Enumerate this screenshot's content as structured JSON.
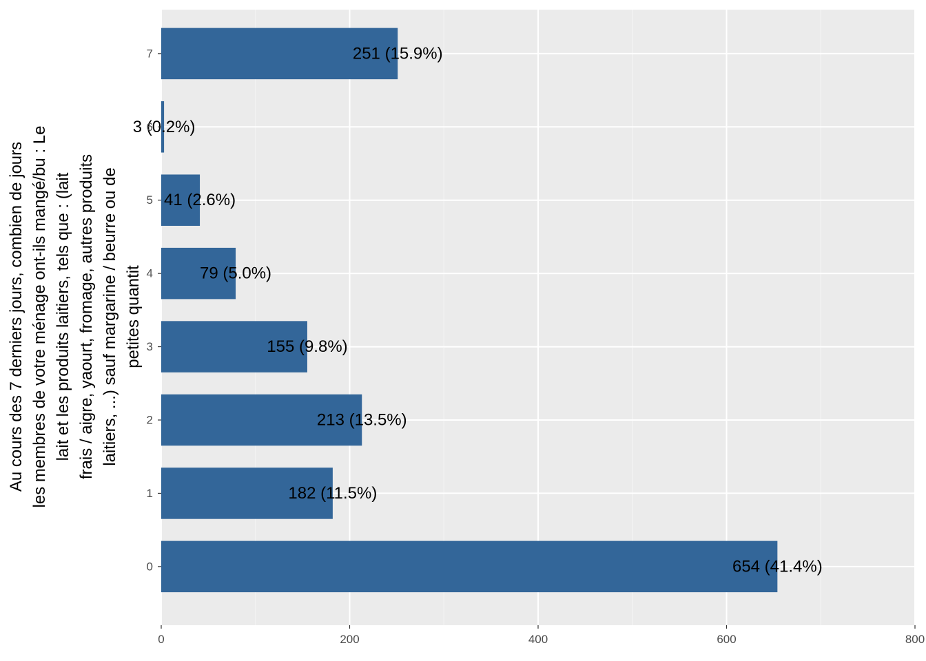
{
  "colors": {
    "panel": "#EBEBEB",
    "grid_major": "#FFFFFF",
    "grid_minor": "#F5F5F5",
    "bar": "#336699",
    "tick": "#333333"
  },
  "chart_data": {
    "type": "bar",
    "orientation": "horizontal",
    "title": "",
    "xlabel": "",
    "ylabel_lines": [
      "Au cours des 7 derniers jours, combien de jours",
      "les membres de votre ménage ont-ils mangé/bu : Le",
      "lait et les produits laitiers, tels que : (lait",
      "frais / aigre, yaourt, fromage, autres produits",
      "laitiers, ...) sauf margarine / beurre ou de",
      "petites quantit"
    ],
    "categories": [
      "0",
      "1",
      "2",
      "3",
      "4",
      "5",
      "6",
      "7"
    ],
    "values": [
      654,
      182,
      213,
      155,
      79,
      41,
      3,
      251
    ],
    "labels": [
      "654 (41.4%)",
      "182 (11.5%)",
      "213 (13.5%)",
      "155 (9.8%)",
      "79 (5.0%)",
      "41 (2.6%)",
      "3 (0.2%)",
      "251 (15.9%)"
    ],
    "xlim": [
      0,
      800
    ],
    "xticks": [
      0,
      200,
      400,
      600,
      800
    ],
    "xtick_labels": [
      "0",
      "200",
      "400",
      "600",
      "800"
    ],
    "grid": true,
    "legend": "none"
  }
}
